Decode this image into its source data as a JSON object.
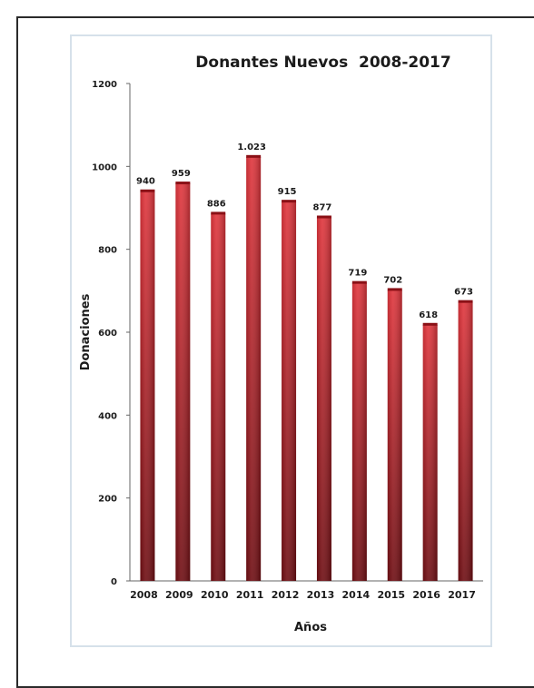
{
  "chart_data": {
    "type": "bar",
    "title": "Donantes Nuevos  2008-2017",
    "xlabel": "Años",
    "ylabel": "Donaciones",
    "categories": [
      "2008",
      "2009",
      "2010",
      "2011",
      "2012",
      "2013",
      "2014",
      "2015",
      "2016",
      "2017"
    ],
    "values": [
      940,
      959,
      886,
      1023,
      915,
      877,
      719,
      702,
      618,
      673
    ],
    "value_labels": [
      "940",
      "959",
      "886",
      "1.023",
      "915",
      "877",
      "719",
      "702",
      "618",
      "673"
    ],
    "ylim": [
      0,
      1200
    ],
    "yticks": [
      "0",
      "200",
      "400",
      "600",
      "800",
      "1000",
      "1200"
    ],
    "grid": false,
    "legend": "none",
    "bar_color_top": "#e0353c",
    "bar_color_bottom": "#6e0d12"
  }
}
